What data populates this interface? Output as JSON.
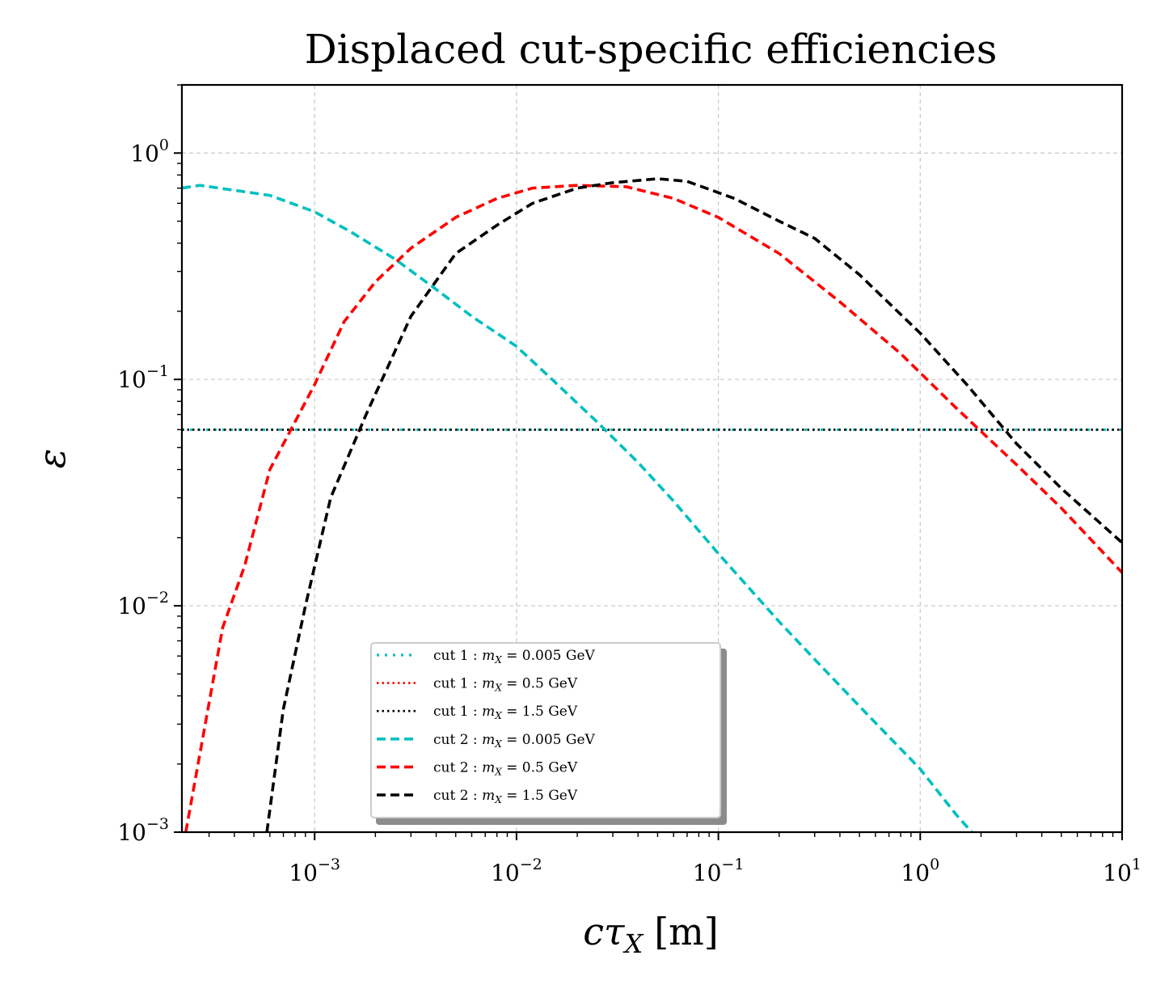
{
  "chart_data": {
    "type": "line",
    "title": "Displaced cut-specific efficiencies",
    "xlabel": "cτ",
    "xlabel_sub": "X",
    "xlabel_unit": "[m]",
    "ylabel": "ε",
    "xscale": "log",
    "yscale": "log",
    "xlim": [
      0.00022,
      10
    ],
    "ylim": [
      0.001,
      2
    ],
    "grid": true,
    "legend_position": "lower-center",
    "x_ticks": [
      {
        "value": 0.001,
        "base": "10",
        "exp": "−3"
      },
      {
        "value": 0.01,
        "base": "10",
        "exp": "−2"
      },
      {
        "value": 0.1,
        "base": "10",
        "exp": "−1"
      },
      {
        "value": 1,
        "base": "10",
        "exp": "0"
      },
      {
        "value": 10,
        "base": "10",
        "exp": "1"
      }
    ],
    "y_ticks": [
      {
        "value": 0.001,
        "base": "10",
        "exp": "−3"
      },
      {
        "value": 0.01,
        "base": "10",
        "exp": "−2"
      },
      {
        "value": 0.1,
        "base": "10",
        "exp": "−1"
      },
      {
        "value": 1,
        "base": "10",
        "exp": "0"
      }
    ],
    "series": [
      {
        "name": "cut 1 : m_X = 0.005 GeV",
        "label_prefix": "cut 1 : ",
        "label_suffix": " = 0.005 GeV",
        "color": "#00bfbf",
        "style": "dotted-wide",
        "x": [
          0.00022,
          10
        ],
        "y": [
          0.06,
          0.06
        ]
      },
      {
        "name": "cut 1 : m_X = 0.5 GeV",
        "label_prefix": "cut 1 : ",
        "label_suffix": " = 0.5 GeV",
        "color": "#ff0000",
        "style": "dotted",
        "x": [
          0.00022,
          10
        ],
        "y": [
          0.06,
          0.06
        ]
      },
      {
        "name": "cut 1 : m_X = 1.5 GeV",
        "label_prefix": "cut 1 : ",
        "label_suffix": " = 1.5 GeV",
        "color": "#000000",
        "style": "dotted",
        "x": [
          0.00022,
          10
        ],
        "y": [
          0.06,
          0.06
        ]
      },
      {
        "name": "cut 2 : m_X = 0.005 GeV",
        "label_prefix": "cut 2 : ",
        "label_suffix": " = 0.005 GeV",
        "color": "#00bfbf",
        "style": "dashed",
        "x": [
          0.00022,
          0.00027,
          0.0006,
          0.001,
          0.0015,
          0.0025,
          0.004,
          0.006,
          0.01,
          0.015,
          0.025,
          0.04,
          0.06,
          0.1,
          0.2,
          0.3,
          0.5,
          1,
          1.5,
          1.8
        ],
        "y": [
          0.7,
          0.72,
          0.65,
          0.55,
          0.45,
          0.34,
          0.25,
          0.19,
          0.14,
          0.1,
          0.065,
          0.043,
          0.029,
          0.017,
          0.0085,
          0.0058,
          0.0036,
          0.0019,
          0.0012,
          0.001
        ]
      },
      {
        "name": "cut 2 : m_X = 0.5 GeV",
        "label_prefix": "cut 2 : ",
        "label_suffix": " = 0.5 GeV",
        "color": "#ff0000",
        "style": "dashed",
        "x": [
          0.00023,
          0.00035,
          0.00045,
          0.0006,
          0.0008,
          0.001,
          0.0014,
          0.002,
          0.003,
          0.005,
          0.008,
          0.012,
          0.02,
          0.035,
          0.06,
          0.1,
          0.2,
          0.4,
          0.8,
          1.5,
          3,
          5,
          10
        ],
        "y": [
          0.001,
          0.008,
          0.015,
          0.04,
          0.065,
          0.095,
          0.18,
          0.27,
          0.38,
          0.52,
          0.63,
          0.7,
          0.72,
          0.71,
          0.63,
          0.52,
          0.36,
          0.22,
          0.13,
          0.075,
          0.042,
          0.027,
          0.014
        ]
      },
      {
        "name": "cut 2 : m_X = 1.5 GeV",
        "label_prefix": "cut 2 : ",
        "label_suffix": " = 1.5 GeV",
        "color": "#000000",
        "style": "dashed",
        "x": [
          0.00058,
          0.0007,
          0.0009,
          0.0012,
          0.0018,
          0.003,
          0.005,
          0.008,
          0.012,
          0.02,
          0.03,
          0.05,
          0.07,
          0.12,
          0.2,
          0.3,
          0.5,
          1,
          1.7,
          3,
          5,
          10
        ],
        "y": [
          0.001,
          0.0035,
          0.01,
          0.03,
          0.07,
          0.19,
          0.36,
          0.48,
          0.6,
          0.7,
          0.74,
          0.77,
          0.75,
          0.63,
          0.5,
          0.42,
          0.29,
          0.16,
          0.095,
          0.052,
          0.033,
          0.019
        ]
      }
    ]
  }
}
